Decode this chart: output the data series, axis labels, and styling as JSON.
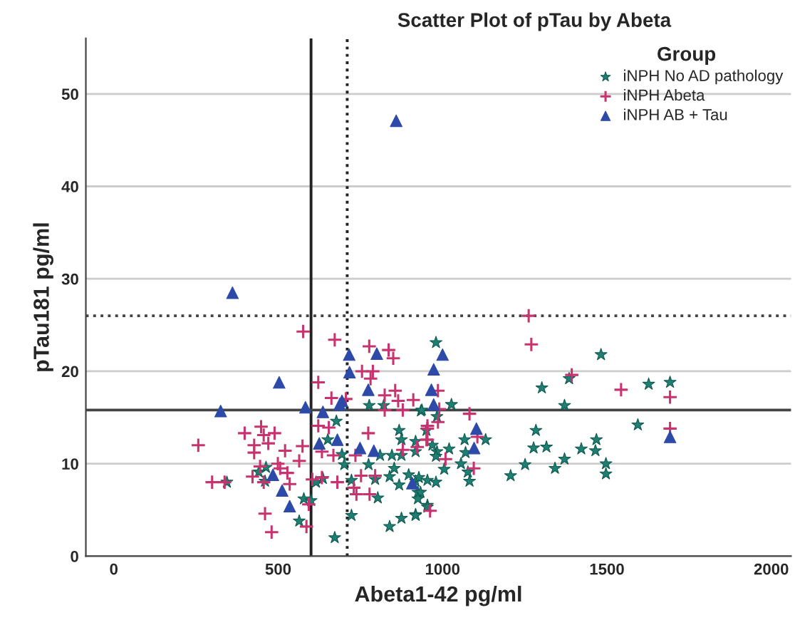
{
  "chart_data": {
    "type": "scatter",
    "title": "Scatter Plot of pTau by Abeta",
    "xlabel": "Abeta1-42 pg/ml",
    "ylabel": "pTau181 pg/ml",
    "legend_title": "Group",
    "xlim": [
      -85,
      2060
    ],
    "ylim": [
      0,
      56
    ],
    "xticks": [
      0,
      500,
      1000,
      1500,
      2000
    ],
    "yticks": [
      0,
      10,
      20,
      30,
      40,
      50
    ],
    "grid": "y",
    "legend": "top right",
    "ref_lines": [
      {
        "axis": "x",
        "value": 600,
        "line_style": "solid",
        "color": "#222222"
      },
      {
        "axis": "x",
        "value": 710,
        "line_style": "dotted",
        "color": "#222222"
      },
      {
        "axis": "y",
        "value": 15.8,
        "line_style": "solid",
        "color": "#444444"
      },
      {
        "axis": "y",
        "value": 26,
        "line_style": "dotted",
        "color": "#444444"
      }
    ],
    "series": [
      {
        "name": "iNPH No AD pathology",
        "color": "#1f7f73",
        "marker": "star",
        "x": [
          980,
          777,
          821,
          934,
          677,
          868,
          951,
          651,
          875,
          918,
          694,
          810,
          846,
          875,
          983,
          701,
          775,
          853,
          463,
          441,
          795,
          839,
          897,
          918,
          868,
          954,
          636,
          615,
          344,
          460,
          723,
          723,
          803,
          875,
          839,
          918,
          954,
          578,
          600,
          564,
          672,
          925,
          937,
          1027,
          983,
          918,
          969,
          1020,
          1067,
          1131,
          1070,
          980,
          1056,
          1005,
          1077,
          928,
          1082,
          980,
          933,
          925,
          954,
          918,
          1302,
          1385,
          1482,
          1627,
          1692,
          1371,
          1594,
          1284,
          1277,
          1316,
          1468,
          1465,
          1422,
          1371,
          1497,
          1497,
          1342,
          1251,
          1207
        ],
        "values": [
          23.1,
          16.3,
          16.3,
          15.7,
          14.6,
          13.6,
          13.6,
          12.6,
          12.6,
          11.3,
          11.0,
          10.9,
          10.9,
          10.9,
          11.3,
          9.9,
          9.9,
          9.5,
          9.6,
          9.1,
          8.3,
          8.6,
          8.8,
          8.1,
          7.7,
          8.2,
          8.4,
          8.0,
          8.0,
          8.1,
          8.2,
          4.4,
          6.3,
          4.1,
          3.2,
          4.5,
          5.5,
          6.2,
          6.0,
          3.8,
          2.0,
          6.9,
          15.8,
          16.4,
          15.1,
          12.4,
          12.0,
          11.6,
          12.6,
          12.6,
          11.2,
          10.8,
          10.0,
          9.4,
          9.1,
          8.5,
          8.1,
          8.0,
          6.9,
          6.2,
          5.3,
          4.4,
          18.2,
          19.2,
          21.8,
          18.6,
          18.8,
          16.3,
          14.2,
          13.6,
          11.7,
          11.8,
          12.6,
          11.4,
          11.6,
          10.5,
          10.0,
          8.9,
          9.5,
          9.9,
          8.7
        ]
      },
      {
        "name": "iNPH Abeta",
        "color": "#c8336f",
        "marker": "cross",
        "x": [
          576,
          672,
          777,
          836,
          850,
          755,
          788,
          781,
          622,
          856,
          824,
          662,
          865,
          911,
          706,
          824,
          879,
          622,
          654,
          774,
          448,
          398,
          489,
          456,
          257,
          470,
          427,
          574,
          427,
          521,
          564,
          499,
          445,
          506,
          528,
          422,
          456,
          299,
          337,
          535,
          604,
          633,
          680,
          668,
          633,
          735,
          752,
          795,
          730,
          738,
          778,
          593,
          460,
          480,
          586,
          879,
          923,
          954,
          990,
          954,
          1262,
          1270,
          1393,
          1543,
          1692,
          1692,
          1082,
          1106,
          1095,
          1009,
          986,
          986,
          954,
          951,
          962
        ],
        "values": [
          24.3,
          23.4,
          22.7,
          22.3,
          21.4,
          20.0,
          20.0,
          19.2,
          18.8,
          17.9,
          17.4,
          17.1,
          16.8,
          16.9,
          17.0,
          15.8,
          15.8,
          14.1,
          13.9,
          13.3,
          14.0,
          13.3,
          13.3,
          13.1,
          12.0,
          12.2,
          12.0,
          11.9,
          11.2,
          11.4,
          10.3,
          10.0,
          9.7,
          9.5,
          9.0,
          8.6,
          8.0,
          8.0,
          8.0,
          7.8,
          8.3,
          8.5,
          8.0,
          10.9,
          11.3,
          10.9,
          8.7,
          8.7,
          7.4,
          6.7,
          6.7,
          5.6,
          4.6,
          2.6,
          3.2,
          11.5,
          11.8,
          12.6,
          15.9,
          14.1,
          26.0,
          22.9,
          19.6,
          18.0,
          17.2,
          13.8,
          15.4,
          12.9,
          9.5,
          10.5,
          17.9,
          14.5,
          13.8,
          12.6,
          4.9
        ]
      },
      {
        "name": "iNPH AB + Tau",
        "color": "#2d4aa8",
        "marker": "triangle",
        "x": [
          361,
          503,
          325,
          583,
          636,
          694,
          687,
          716,
          800,
          717,
          774,
          973,
          966,
          973,
          625,
          680,
          749,
          791,
          484,
          512,
          535,
          908,
          1000,
          1103,
          1096,
          1692,
          859
        ],
        "values": [
          28.5,
          18.8,
          15.7,
          16.1,
          15.6,
          16.8,
          16.4,
          21.8,
          21.9,
          19.9,
          18.0,
          20.2,
          18.0,
          16.4,
          12.2,
          12.6,
          11.7,
          11.4,
          8.8,
          7.1,
          5.4,
          7.9,
          21.8,
          13.8,
          11.7,
          12.9,
          47.1
        ]
      }
    ]
  }
}
